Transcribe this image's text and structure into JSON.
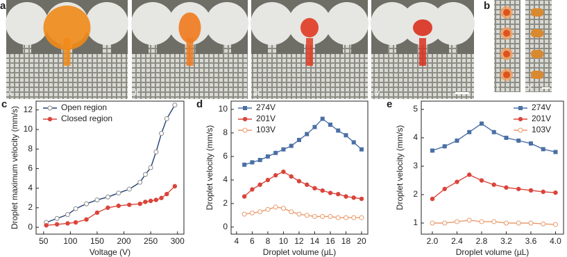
{
  "photo_panels": [
    {
      "label": "a",
      "sublabels": [
        "i",
        "ii",
        "iii",
        "iv"
      ]
    },
    {
      "label": "b",
      "sublabels": [
        "i",
        "ii"
      ]
    }
  ],
  "chart_data": [
    {
      "type": "scatter",
      "panel": "c",
      "x_label": "Voltage (V)",
      "y_label": "Droplet maximum velocity (mm/s)",
      "x": [
        55,
        75,
        95,
        110,
        130,
        150,
        170,
        190,
        210,
        230,
        240,
        250,
        260,
        270,
        280,
        295
      ],
      "series": [
        {
          "name": "Open region",
          "color": "#8a8a8a",
          "line_color": "#1f3f73",
          "marker": "open-circle",
          "values": [
            0.5,
            0.9,
            1.3,
            1.9,
            2.4,
            2.8,
            3.1,
            3.5,
            3.9,
            4.6,
            5.4,
            6.1,
            7.7,
            9.6,
            11.1,
            12.5
          ]
        },
        {
          "name": "Closed region",
          "color": "#d9443a",
          "line_color": "#d9443a",
          "marker": "circle",
          "values": [
            0.2,
            0.3,
            0.4,
            0.5,
            0.8,
            1.5,
            2.0,
            2.2,
            2.3,
            2.4,
            2.6,
            2.7,
            2.8,
            3.0,
            3.4,
            4.2
          ]
        }
      ],
      "xlim": [
        36,
        312
      ],
      "ylim": [
        -0.7,
        12.9
      ],
      "xticks": [
        50,
        100,
        150,
        200,
        250,
        300
      ],
      "yticks": [
        0,
        2,
        4,
        6,
        8,
        10,
        12
      ],
      "legend": "upper left"
    },
    {
      "type": "line",
      "panel": "d",
      "x_label": "Droplet volume (µL)",
      "y_label": "Droplet velocity (mm/s)",
      "x": [
        5,
        6,
        7,
        8,
        9,
        10,
        11,
        12,
        13,
        14,
        15,
        16,
        17,
        18,
        19,
        20
      ],
      "series": [
        {
          "name": "274V",
          "color": "#4a6fa5",
          "marker": "square",
          "values": [
            5.3,
            5.5,
            5.7,
            6.0,
            6.3,
            6.6,
            6.9,
            7.4,
            7.9,
            8.5,
            9.2,
            8.7,
            8.2,
            7.8,
            7.2,
            6.6
          ]
        },
        {
          "name": "201V",
          "color": "#d9443a",
          "marker": "circle",
          "values": [
            2.6,
            3.2,
            3.6,
            4.0,
            4.4,
            4.7,
            4.3,
            3.9,
            3.6,
            3.3,
            3.1,
            2.9,
            2.8,
            2.6,
            2.5,
            2.4
          ]
        },
        {
          "name": "103V",
          "color": "#e89a6a",
          "marker": "open-circle",
          "values": [
            1.1,
            1.2,
            1.3,
            1.5,
            1.7,
            1.6,
            1.3,
            1.1,
            1.0,
            0.9,
            0.9,
            0.9,
            0.8,
            0.8,
            0.8,
            0.8
          ]
        }
      ],
      "xlim": [
        3.3,
        20.8
      ],
      "ylim": [
        -0.6,
        10.7
      ],
      "xticks": [
        4,
        6,
        8,
        10,
        12,
        14,
        16,
        18,
        20
      ],
      "yticks": [
        0,
        2,
        4,
        6,
        8,
        10
      ],
      "legend": "upper left"
    },
    {
      "type": "line",
      "panel": "e",
      "x_label": "Droplet volume (µL)",
      "y_label": "Droplet velocity (mm/s)",
      "x": [
        2.0,
        2.2,
        2.4,
        2.6,
        2.8,
        3.0,
        3.2,
        3.4,
        3.6,
        3.8,
        4.0
      ],
      "series": [
        {
          "name": "274V",
          "color": "#4a6fa5",
          "marker": "square",
          "values": [
            3.55,
            3.7,
            3.9,
            4.2,
            4.5,
            4.2,
            4.0,
            3.9,
            3.8,
            3.6,
            3.5
          ]
        },
        {
          "name": "201V",
          "color": "#d9443a",
          "marker": "circle",
          "values": [
            1.85,
            2.2,
            2.45,
            2.7,
            2.5,
            2.35,
            2.25,
            2.2,
            2.15,
            2.1,
            2.07
          ]
        },
        {
          "name": "103V",
          "color": "#e89a6a",
          "marker": "open-circle",
          "values": [
            1.0,
            1.0,
            1.05,
            1.1,
            1.05,
            1.05,
            1.0,
            1.0,
            1.0,
            0.97,
            0.95
          ]
        }
      ],
      "xlim": [
        1.82,
        4.13
      ],
      "ylim": [
        0.61,
        5.29
      ],
      "xticks": [
        {
          "value": 2,
          "label": "2.0"
        },
        2.4,
        2.8,
        3.2,
        3.6,
        {
          "value": 4,
          "label": "4.0"
        }
      ],
      "yticks": [
        1,
        2,
        3,
        4,
        5
      ],
      "legend": "upper right"
    }
  ]
}
